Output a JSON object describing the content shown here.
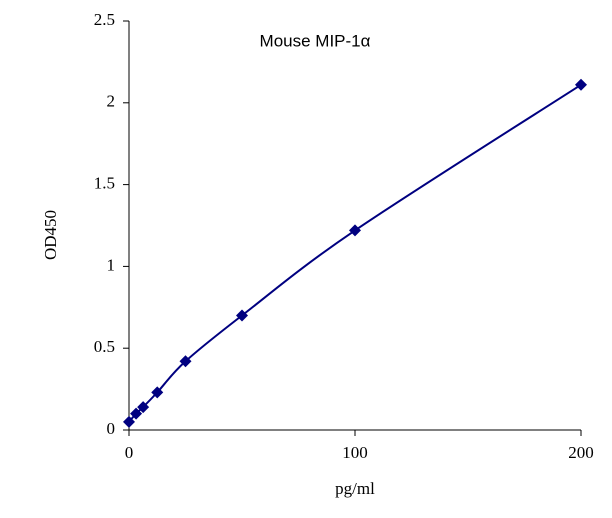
{
  "chart_data": {
    "type": "line",
    "title": "Mouse   MIP-1α",
    "x_label": "pg/ml",
    "y_label": "OD450",
    "x": [
      0,
      3.125,
      6.25,
      12.5,
      25,
      50,
      100,
      200
    ],
    "series": [
      {
        "name": "OD450",
        "color": "#000080",
        "values": [
          0.05,
          0.1,
          0.14,
          0.23,
          0.42,
          0.7,
          1.22,
          2.11
        ]
      }
    ],
    "xlim": [
      0,
      200
    ],
    "xticks": [
      0,
      100,
      200
    ],
    "ylim": [
      0,
      2.5
    ],
    "yticks": [
      0,
      0.5,
      1,
      1.5,
      2,
      2.5
    ],
    "grid": false
  }
}
